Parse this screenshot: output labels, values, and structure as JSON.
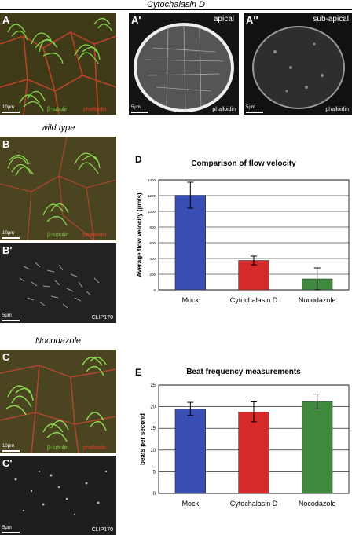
{
  "header": {
    "title": "Cytochalasin D"
  },
  "panels": {
    "A": {
      "label": "A",
      "scale": "10µm",
      "stain_green": "β-tubulin",
      "stain_red": "phalloidin"
    },
    "A1": {
      "label": "A'",
      "scale": "5µm",
      "caption": "apical",
      "stain": "phalloidin"
    },
    "A2": {
      "label": "A''",
      "scale": "5µm",
      "caption": "sub-apical",
      "stain": "phalloidin"
    },
    "B": {
      "label": "B",
      "scale": "10µm",
      "stain_green": "β-tubulin",
      "stain_red": "phalloidin"
    },
    "B1": {
      "label": "B'",
      "scale": "5µm",
      "stain": "CLIP170"
    },
    "C": {
      "label": "C",
      "scale": "10µm",
      "stain_green": "β-tubulin",
      "stain_red": "phalloidin"
    },
    "C1": {
      "label": "C'",
      "scale": "5µm",
      "stain": "CLIP170"
    }
  },
  "sections": {
    "wild_type": "wild type",
    "nocodazole": "Nocodazole"
  },
  "chart_data": [
    {
      "id": "D",
      "letter": "D",
      "type": "bar",
      "title": "Comparison of flow velocity",
      "ylabel": "Average flow velocity (µm/s)",
      "xlabel": "",
      "categories": [
        "Mock",
        "Cytochalasin D",
        "Nocodazole"
      ],
      "values": [
        1205,
        375,
        140
      ],
      "errors": [
        165,
        55,
        140
      ],
      "colors": [
        "#3a4fb3",
        "#d42a2a",
        "#3f8a3f"
      ],
      "ylim": [
        0,
        1400
      ],
      "yticks": [
        0,
        200,
        400,
        600,
        800,
        1000,
        1200,
        1400
      ],
      "grid": true
    },
    {
      "id": "E",
      "letter": "E",
      "type": "bar",
      "title": "Beat frequency measurements",
      "ylabel": "beats per second",
      "xlabel": "",
      "categories": [
        "Mock",
        "Cytochalasin D",
        "Nocodazole"
      ],
      "values": [
        19.5,
        18.8,
        21.2
      ],
      "errors": [
        1.5,
        2.3,
        1.7
      ],
      "colors": [
        "#3a4fb3",
        "#d42a2a",
        "#3f8a3f"
      ],
      "ylim": [
        0,
        25
      ],
      "yticks": [
        0,
        5,
        10,
        15,
        20,
        25
      ],
      "grid": true
    }
  ]
}
